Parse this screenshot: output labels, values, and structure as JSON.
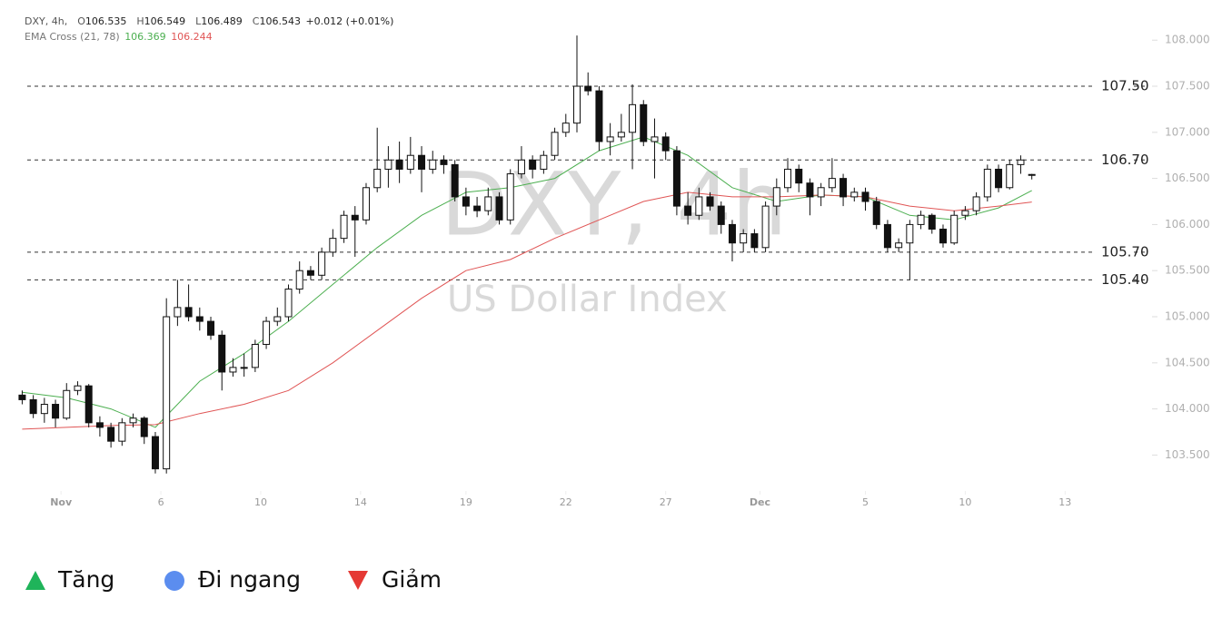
{
  "chart_data": {
    "type": "candlestick",
    "symbol": "DXY, 4h,",
    "change": "+0.012 (+0.01%)",
    "watermark": "DXY, 4h",
    "watermark_subtitle": "US Dollar Index",
    "indicator": "EMA Cross (21, 78)",
    "open": [
      104.15,
      104.1,
      103.95,
      104.05,
      103.9,
      104.2,
      104.25,
      103.85,
      103.8,
      103.65,
      103.85,
      103.9,
      103.7,
      103.35,
      105.0,
      105.1,
      105.0,
      104.95,
      104.8,
      104.4,
      104.45,
      104.45,
      104.7,
      104.95,
      105.0,
      105.3,
      105.5,
      105.45,
      105.7,
      105.85,
      106.1,
      106.05,
      106.4,
      106.6,
      106.7,
      106.6,
      106.75,
      106.6,
      106.7,
      106.65,
      106.3,
      106.2,
      106.15,
      106.3,
      106.05,
      106.55,
      106.7,
      106.6,
      106.75,
      107.0,
      107.1,
      107.5,
      107.45,
      106.9,
      106.95,
      107.0,
      107.3,
      106.9,
      106.95,
      106.8,
      106.2,
      106.1,
      106.3,
      106.2,
      106.0,
      105.8,
      105.9,
      105.75,
      106.2,
      106.4,
      106.6,
      106.45,
      106.3,
      106.4,
      106.5,
      106.3,
      106.35,
      106.25,
      106.0,
      105.75,
      105.8,
      106.0,
      106.1,
      105.95,
      105.8,
      106.1,
      106.15,
      106.3,
      106.6,
      106.4,
      106.65,
      106.535
    ],
    "high": [
      104.2,
      104.15,
      104.12,
      104.1,
      104.28,
      104.3,
      104.27,
      103.92,
      103.85,
      103.9,
      103.95,
      103.92,
      103.75,
      105.2,
      105.4,
      105.35,
      105.1,
      105.0,
      104.85,
      104.55,
      104.6,
      104.75,
      105.0,
      105.1,
      105.35,
      105.6,
      105.55,
      105.75,
      105.95,
      106.15,
      106.2,
      106.45,
      107.05,
      106.85,
      106.9,
      106.95,
      106.85,
      106.8,
      106.75,
      106.7,
      106.4,
      106.3,
      106.4,
      106.35,
      106.6,
      106.85,
      106.75,
      106.8,
      107.05,
      107.2,
      108.05,
      107.65,
      107.5,
      107.1,
      107.2,
      107.52,
      107.35,
      107.15,
      107.0,
      106.85,
      106.35,
      106.4,
      106.35,
      106.25,
      106.05,
      105.95,
      105.95,
      106.25,
      106.5,
      106.72,
      106.65,
      106.5,
      106.45,
      106.72,
      106.55,
      106.4,
      106.4,
      106.3,
      106.05,
      105.85,
      106.05,
      106.15,
      106.12,
      106.0,
      106.15,
      106.2,
      106.35,
      106.65,
      106.65,
      106.7,
      106.75,
      106.549
    ],
    "low": [
      104.05,
      103.9,
      103.85,
      103.8,
      103.88,
      104.15,
      103.8,
      103.7,
      103.58,
      103.6,
      103.8,
      103.62,
      103.3,
      103.3,
      104.9,
      104.95,
      104.85,
      104.75,
      104.2,
      104.35,
      104.35,
      104.4,
      104.65,
      104.9,
      104.95,
      105.25,
      105.4,
      105.4,
      105.65,
      105.8,
      105.65,
      106.0,
      106.35,
      106.4,
      106.45,
      106.55,
      106.35,
      106.55,
      106.55,
      106.25,
      106.1,
      106.08,
      106.1,
      106.0,
      106.0,
      106.5,
      106.5,
      106.55,
      106.7,
      106.95,
      107.0,
      107.4,
      106.8,
      106.75,
      106.9,
      106.6,
      106.85,
      106.5,
      106.7,
      106.1,
      106.0,
      106.05,
      106.15,
      105.9,
      105.6,
      105.7,
      105.7,
      105.7,
      106.1,
      106.35,
      106.35,
      106.1,
      106.2,
      106.35,
      106.2,
      106.25,
      106.15,
      105.95,
      105.7,
      105.7,
      105.4,
      105.95,
      105.9,
      105.75,
      105.78,
      106.05,
      106.1,
      106.25,
      106.35,
      106.38,
      106.55,
      106.489
    ],
    "close": [
      104.1,
      103.95,
      104.05,
      103.9,
      104.2,
      104.25,
      103.85,
      103.8,
      103.65,
      103.85,
      103.9,
      103.7,
      103.35,
      105.0,
      105.1,
      105.0,
      104.95,
      104.8,
      104.4,
      104.45,
      104.45,
      104.7,
      104.95,
      105.0,
      105.3,
      105.5,
      105.45,
      105.7,
      105.85,
      106.1,
      106.05,
      106.4,
      106.6,
      106.7,
      106.6,
      106.75,
      106.6,
      106.7,
      106.65,
      106.3,
      106.2,
      106.15,
      106.3,
      106.05,
      106.55,
      106.7,
      106.6,
      106.75,
      107.0,
      107.1,
      107.5,
      107.45,
      106.9,
      106.95,
      107.0,
      107.3,
      106.9,
      106.95,
      106.8,
      106.2,
      106.1,
      106.3,
      106.2,
      106.0,
      105.8,
      105.9,
      105.75,
      106.2,
      106.4,
      106.6,
      106.45,
      106.3,
      106.4,
      106.5,
      106.3,
      106.35,
      106.25,
      106.0,
      105.75,
      105.8,
      106.0,
      106.1,
      105.95,
      105.8,
      106.1,
      106.15,
      106.3,
      106.6,
      106.4,
      106.65,
      106.7,
      106.543
    ],
    "ema": [
      {
        "color": "#4caf50",
        "x": [
          0,
          4,
          8,
          12,
          16,
          20,
          24,
          28,
          32,
          36,
          40,
          44,
          48,
          52,
          56,
          60,
          64,
          68,
          72,
          76,
          80,
          84,
          88,
          91
        ],
        "values": [
          104.18,
          104.12,
          104.0,
          103.8,
          104.3,
          104.6,
          104.95,
          105.35,
          105.75,
          106.1,
          106.35,
          106.4,
          106.5,
          106.8,
          106.95,
          106.75,
          106.4,
          106.25,
          106.32,
          106.3,
          106.1,
          106.05,
          106.18,
          106.369
        ]
      },
      {
        "color": "#e05555",
        "x": [
          0,
          4,
          8,
          12,
          16,
          20,
          24,
          28,
          32,
          36,
          40,
          44,
          48,
          52,
          56,
          60,
          64,
          68,
          72,
          76,
          80,
          84,
          88,
          91
        ],
        "values": [
          103.78,
          103.8,
          103.82,
          103.83,
          103.95,
          104.05,
          104.2,
          104.5,
          104.85,
          105.2,
          105.5,
          105.62,
          105.85,
          106.05,
          106.25,
          106.35,
          106.3,
          106.3,
          106.32,
          106.3,
          106.2,
          106.15,
          106.2,
          106.244
        ]
      }
    ],
    "levels": [
      {
        "value": 107.5,
        "label": "107.50"
      },
      {
        "value": 106.7,
        "label": "106.70"
      },
      {
        "value": 105.7,
        "label": "105.70"
      },
      {
        "value": 105.4,
        "label": "105.40"
      }
    ],
    "xlim": [
      -2,
      102
    ],
    "ylim": [
      103.12,
      108.14
    ],
    "yticks": [
      {
        "value": 108,
        "label": "108.000"
      },
      {
        "value": 107.5,
        "label": "107.500"
      },
      {
        "value": 107,
        "label": "107.000"
      },
      {
        "value": 106.5,
        "label": "106.500"
      },
      {
        "value": 106,
        "label": "106.000"
      },
      {
        "value": 105.5,
        "label": "105.500"
      },
      {
        "value": 105,
        "label": "105.000"
      },
      {
        "value": 104.5,
        "label": "104.500"
      },
      {
        "value": 104,
        "label": "104.000"
      },
      {
        "value": 103.5,
        "label": "103.500"
      }
    ],
    "xticks": [
      {
        "value": 3.5,
        "label": "Nov"
      },
      {
        "value": 12.5,
        "label": "6"
      },
      {
        "value": 21.5,
        "label": "10"
      },
      {
        "value": 30.5,
        "label": "14"
      },
      {
        "value": 40,
        "label": "19"
      },
      {
        "value": 49,
        "label": "22"
      },
      {
        "value": 58,
        "label": "27"
      },
      {
        "value": 66.5,
        "label": "Dec"
      },
      {
        "value": 76,
        "label": "5"
      },
      {
        "value": 85,
        "label": "10"
      },
      {
        "value": 94,
        "label": "13"
      }
    ]
  },
  "legend": {
    "items": [
      "Tăng",
      "Đi ngang",
      "Giảm"
    ]
  }
}
